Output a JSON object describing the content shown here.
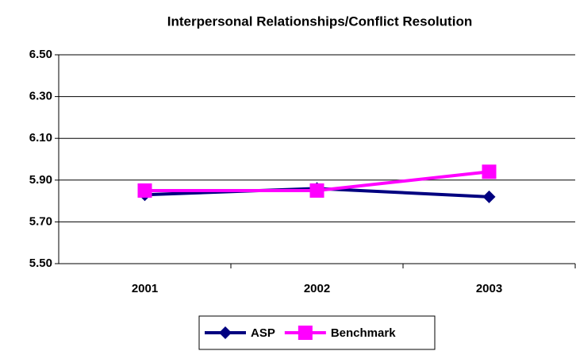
{
  "chart_data": {
    "type": "line",
    "title": "Interpersonal Relationships/Conflict Resolution",
    "categories": [
      "2001",
      "2002",
      "2003"
    ],
    "series": [
      {
        "name": "ASP",
        "color": "#000080",
        "marker": "diamond",
        "values": [
          5.83,
          5.86,
          5.82
        ]
      },
      {
        "name": "Benchmark",
        "color": "#ff00ff",
        "marker": "square",
        "values": [
          5.85,
          5.85,
          5.94
        ]
      }
    ],
    "ylim": [
      5.5,
      6.5
    ],
    "yticks": [
      {
        "value": 5.5,
        "label": "5.50"
      },
      {
        "value": 5.7,
        "label": "5.70"
      },
      {
        "value": 5.9,
        "label": "5.90"
      },
      {
        "value": 6.1,
        "label": "6.10"
      },
      {
        "value": 6.3,
        "label": "6.30"
      },
      {
        "value": 6.5,
        "label": "6.50"
      }
    ],
    "grid": true,
    "legend": "bottom"
  }
}
